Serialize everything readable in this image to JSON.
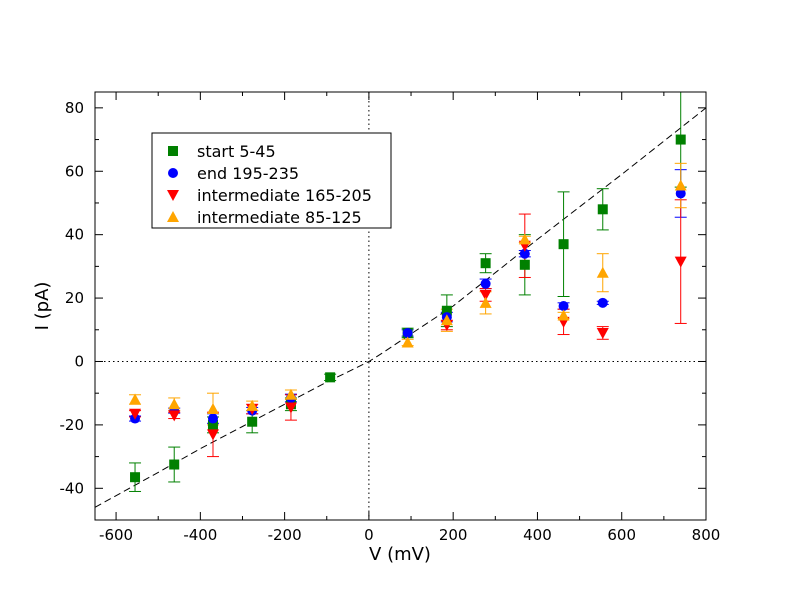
{
  "chart_data": {
    "type": "scatter",
    "title": "",
    "xlabel": "V (mV)",
    "ylabel": "I (pA)",
    "xlim": [
      -650,
      800
    ],
    "ylim": [
      -50,
      85
    ],
    "xticks": [
      -600,
      -400,
      -200,
      0,
      200,
      400,
      600,
      800
    ],
    "yticks": [
      -40,
      -20,
      0,
      20,
      40,
      60,
      80
    ],
    "xtick_labels": [
      "-600",
      "-400",
      "-200",
      "0",
      "200",
      "400",
      "600",
      "800"
    ],
    "ytick_labels": [
      "-40",
      "-20",
      "0",
      "20",
      "40",
      "60",
      "80"
    ],
    "legend_position": "top-left",
    "reference_lines": {
      "zero_x": true,
      "zero_y": true
    },
    "fit_line": {
      "style": "dashed",
      "color": "#000000",
      "x": [
        -650,
        -500,
        -400,
        -300,
        -200,
        -100,
        -30,
        0,
        30,
        100,
        200,
        400,
        600,
        800
      ],
      "y": [
        -46,
        -35,
        -27.5,
        -20.5,
        -13.5,
        -6.5,
        -2,
        0,
        2.5,
        8.7,
        17.5,
        38.5,
        59,
        80
      ]
    },
    "series": [
      {
        "name": "start 5-45",
        "marker": "square",
        "color": "#008000",
        "x": [
          -555,
          -462,
          -370,
          -277,
          -185,
          -92,
          92,
          185,
          277,
          370,
          462,
          555,
          740
        ],
        "y": [
          -36.5,
          -32.5,
          -20,
          -19,
          -13.5,
          -5,
          9,
          16,
          31,
          30.5,
          37,
          48,
          70
        ],
        "yerr": [
          4.5,
          5.5,
          2.5,
          3.5,
          2,
          1,
          1.5,
          5,
          3,
          9.5,
          16.5,
          6.5,
          15
        ]
      },
      {
        "name": "end 195-235",
        "marker": "circle",
        "color": "#0000ff",
        "x": [
          -555,
          -462,
          -370,
          -277,
          -185,
          92,
          185,
          277,
          370,
          462,
          555,
          740
        ],
        "y": [
          -18,
          -15.5,
          -18,
          -15.5,
          -11.5,
          9,
          14,
          24.5,
          34,
          17.5,
          18.5,
          53
        ],
        "yerr": [
          0.8,
          0.8,
          1.5,
          1,
          1.2,
          1,
          1.5,
          1.5,
          1,
          1,
          0.5,
          7.5
        ]
      },
      {
        "name": "intermediate 165-205",
        "marker": "triangle-down",
        "color": "#ff0000",
        "x": [
          -555,
          -462,
          -370,
          -277,
          -185,
          185,
          277,
          370,
          462,
          555,
          740
        ],
        "y": [
          -16.5,
          -17,
          -23,
          -15,
          -14.5,
          11.5,
          21,
          36.5,
          12.5,
          9,
          31.5
        ],
        "yerr": [
          1,
          1,
          7,
          1.5,
          4,
          1.5,
          2,
          10,
          4,
          2,
          19.5
        ]
      },
      {
        "name": "intermediate 85-125",
        "marker": "triangle-up",
        "color": "#ffa500",
        "x": [
          -555,
          -462,
          -370,
          -277,
          -185,
          92,
          185,
          277,
          370,
          462,
          555,
          740
        ],
        "y": [
          -12,
          -13.5,
          -15,
          -14,
          -10.5,
          6,
          13,
          18.5,
          38.5,
          14.5,
          28,
          55.5
        ],
        "yerr": [
          1.5,
          2,
          5,
          1.5,
          1.5,
          1,
          3.5,
          3.5,
          1,
          1,
          6,
          7
        ]
      }
    ]
  }
}
